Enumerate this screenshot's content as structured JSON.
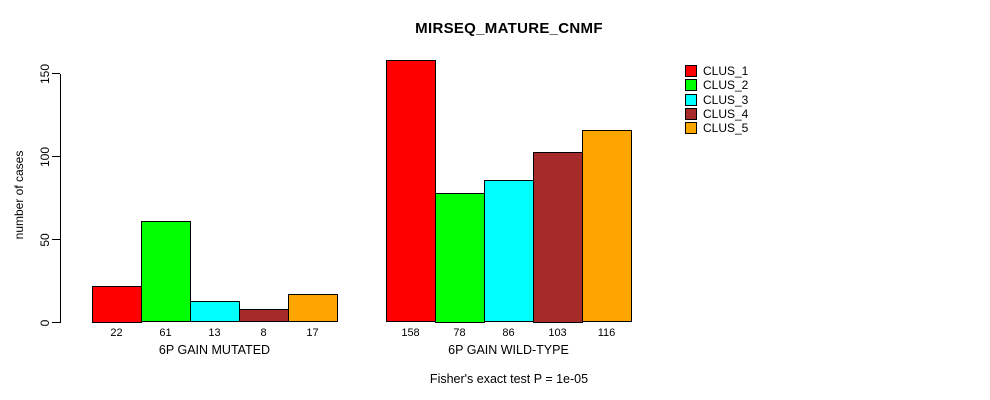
{
  "title": "MIRSEQ_MATURE_CNMF",
  "footer": "Fisher's exact test P = 1e-05",
  "chart_data": {
    "type": "bar",
    "title": "MIRSEQ_MATURE_CNMF",
    "ylabel": "number of cases",
    "xlabel": "",
    "yticks": [
      0,
      50,
      100,
      150
    ],
    "ylim": [
      0,
      165
    ],
    "grid": false,
    "legend_position": "top-right",
    "legend": [
      "CLUS_1",
      "CLUS_2",
      "CLUS_3",
      "CLUS_4",
      "CLUS_5"
    ],
    "colors": [
      "#FF0000",
      "#00FF00",
      "#00FFFF",
      "#A52A2A",
      "#FFA500"
    ],
    "axis_color": "#000000",
    "background_color": "#FFFFFF",
    "groups": [
      {
        "label": "6P GAIN MUTATED",
        "values": [
          22,
          61,
          13,
          8,
          17
        ]
      },
      {
        "label": "6P GAIN WILD-TYPE",
        "values": [
          158,
          78,
          86,
          103,
          116
        ]
      }
    ],
    "annotation": "Fisher's exact test P = 1e-05"
  }
}
